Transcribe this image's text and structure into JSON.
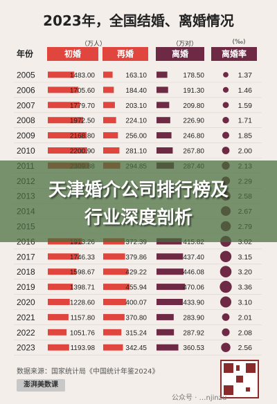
{
  "title": "2023年，全国结婚、离婚情况",
  "headers": {
    "year": "年份",
    "marriage": "初婚",
    "remarriage": "再婚",
    "divorce": "离婚",
    "divorce_rate": "离婚率"
  },
  "units": {
    "marriage": "（万人）",
    "divorce": "（万对）",
    "rate": "(‰)"
  },
  "colors": {
    "red": "#e0463d",
    "maroon": "#6e2a45",
    "background": "#f3eeea"
  },
  "banner": {
    "line1": "天津婚介公司排行榜及",
    "line2": "行业深度剖析"
  },
  "footer": {
    "source": "数据来源：国家统计局《中国统计年鉴2024》",
    "logo": "澎湃美数课",
    "watermark": "公众号 · …njinzu"
  },
  "chart_data": {
    "type": "table",
    "title": "2023年，全国结婚、离婚情况",
    "years": [
      "2005",
      "2006",
      "2007",
      "2008",
      "2009",
      "2010",
      "2011",
      "2012",
      "2013",
      "2014",
      "2015",
      "2016",
      "2017",
      "2018",
      "2019",
      "2020",
      "2021",
      "2022",
      "2023"
    ],
    "series": [
      {
        "name": "初婚",
        "unit": "万人",
        "values": [
          1483.0,
          1705.6,
          1779.7,
          1972.5,
          2168.8,
          2200.9,
          2309.88,
          null,
          null,
          null,
          null,
          1913.26,
          1746.33,
          1598.67,
          1398.71,
          1228.6,
          1157.8,
          1051.76,
          1193.98
        ]
      },
      {
        "name": "再婚",
        "unit": "万人",
        "values": [
          163.1,
          184.4,
          203.1,
          224.1,
          256.0,
          281.1,
          294.85,
          null,
          null,
          null,
          null,
          372.39,
          379.86,
          429.22,
          455.94,
          400.07,
          370.8,
          315.24,
          342.45
        ]
      },
      {
        "name": "离婚",
        "unit": "万对",
        "values": [
          178.5,
          191.3,
          209.8,
          226.9,
          246.8,
          267.8,
          287.4,
          null,
          null,
          null,
          null,
          415.82,
          437.4,
          446.08,
          470.06,
          433.9,
          283.9,
          287.92,
          360.53
        ]
      },
      {
        "name": "离婚率",
        "unit": "‰",
        "values": [
          1.37,
          1.46,
          1.59,
          1.71,
          1.85,
          2.0,
          2.13,
          2.29,
          2.58,
          2.67,
          2.79,
          3.02,
          3.15,
          3.2,
          3.36,
          3.1,
          2.01,
          2.08,
          2.56
        ]
      }
    ]
  }
}
